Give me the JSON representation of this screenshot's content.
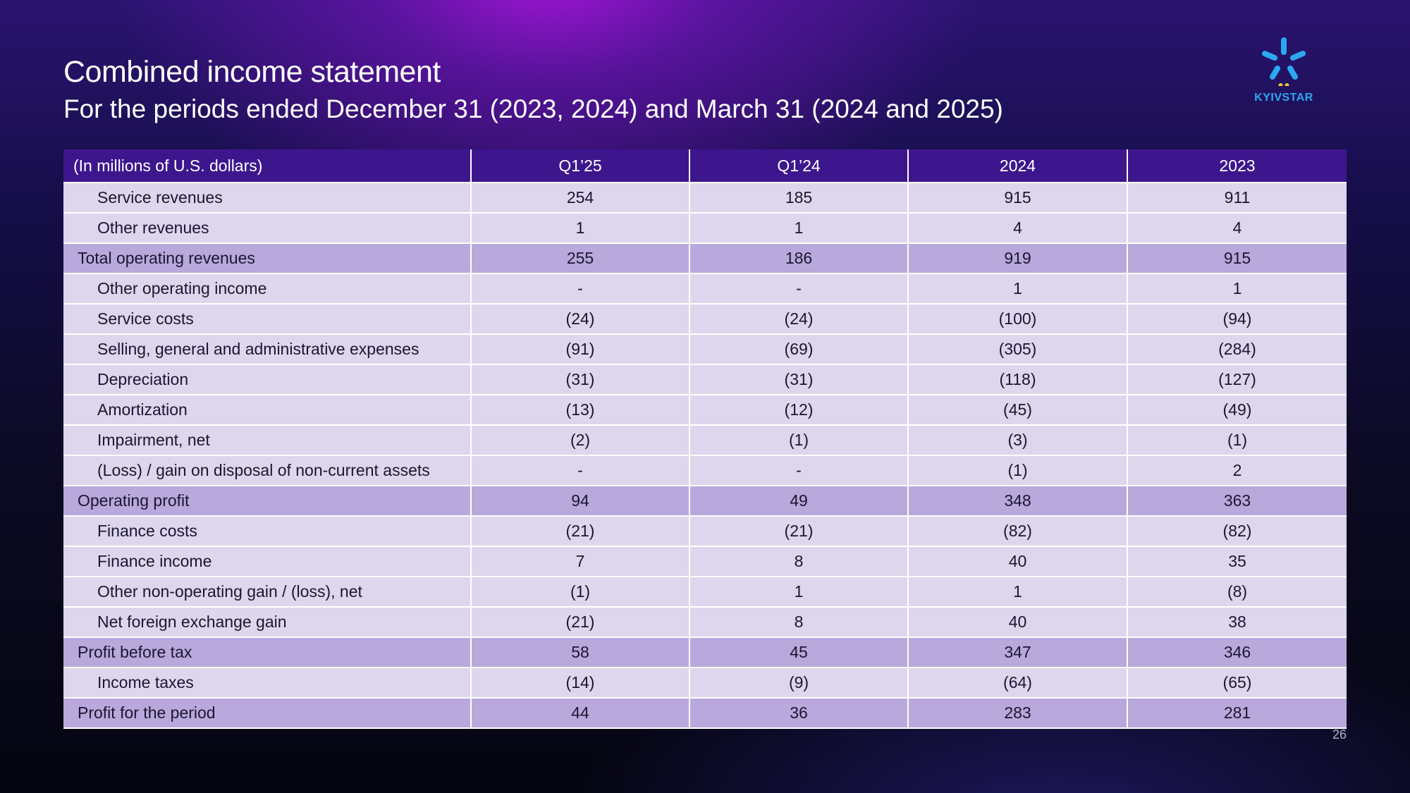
{
  "header": {
    "title": "Combined income statement",
    "subtitle": "For the periods ended December 31 (2023, 2024) and March 31 (2024 and 2025)"
  },
  "logo": {
    "text": "KYIVSTAR",
    "color": "#2ca8f0",
    "icon": "kyivstar-star-icon"
  },
  "table": {
    "columns": [
      "(In millions of U.S. dollars)",
      "Q1’25",
      "Q1’24",
      "2024",
      "2023"
    ],
    "rows": [
      {
        "type": "item",
        "label": "Service revenues",
        "values": [
          "254",
          "185",
          "915",
          "911"
        ]
      },
      {
        "type": "item",
        "label": "Other revenues",
        "values": [
          "1",
          "1",
          "4",
          "4"
        ]
      },
      {
        "type": "total",
        "label": "Total operating revenues",
        "values": [
          "255",
          "186",
          "919",
          "915"
        ]
      },
      {
        "type": "item",
        "label": "Other operating income",
        "values": [
          "-",
          "-",
          "1",
          "1"
        ]
      },
      {
        "type": "item",
        "label": "Service costs",
        "values": [
          "(24)",
          "(24)",
          "(100)",
          "(94)"
        ]
      },
      {
        "type": "item",
        "label": "Selling, general and administrative expenses",
        "values": [
          "(91)",
          "(69)",
          "(305)",
          "(284)"
        ]
      },
      {
        "type": "item",
        "label": "Depreciation",
        "values": [
          "(31)",
          "(31)",
          "(118)",
          "(127)"
        ]
      },
      {
        "type": "item",
        "label": "Amortization",
        "values": [
          "(13)",
          "(12)",
          "(45)",
          "(49)"
        ]
      },
      {
        "type": "item",
        "label": "Impairment, net",
        "values": [
          "(2)",
          "(1)",
          "(3)",
          "(1)"
        ]
      },
      {
        "type": "item",
        "label": "(Loss) / gain on disposal of non-current assets",
        "values": [
          "-",
          "-",
          "(1)",
          "2"
        ]
      },
      {
        "type": "total",
        "label": "Operating profit",
        "values": [
          "94",
          "49",
          "348",
          "363"
        ]
      },
      {
        "type": "item",
        "label": "Finance costs",
        "values": [
          "(21)",
          "(21)",
          "(82)",
          "(82)"
        ]
      },
      {
        "type": "item",
        "label": "Finance income",
        "values": [
          "7",
          "8",
          "40",
          "35"
        ]
      },
      {
        "type": "item",
        "label": "Other non-operating gain / (loss), net",
        "values": [
          "(1)",
          "1",
          "1",
          "(8)"
        ]
      },
      {
        "type": "item",
        "label": "Net foreign exchange gain",
        "values": [
          "(21)",
          "8",
          "40",
          "38"
        ]
      },
      {
        "type": "total",
        "label": "Profit before tax",
        "values": [
          "58",
          "45",
          "347",
          "346"
        ]
      },
      {
        "type": "item",
        "label": "Income taxes",
        "values": [
          "(14)",
          "(9)",
          "(64)",
          "(65)"
        ]
      },
      {
        "type": "total",
        "label": "Profit for the period",
        "values": [
          "44",
          "36",
          "283",
          "281"
        ]
      }
    ]
  },
  "footer": {
    "page_number": "26"
  },
  "colors": {
    "header_row": "#3d168e",
    "item_row": "#ded6ec",
    "total_row": "#b9a8db",
    "logo": "#2ca8f0"
  }
}
